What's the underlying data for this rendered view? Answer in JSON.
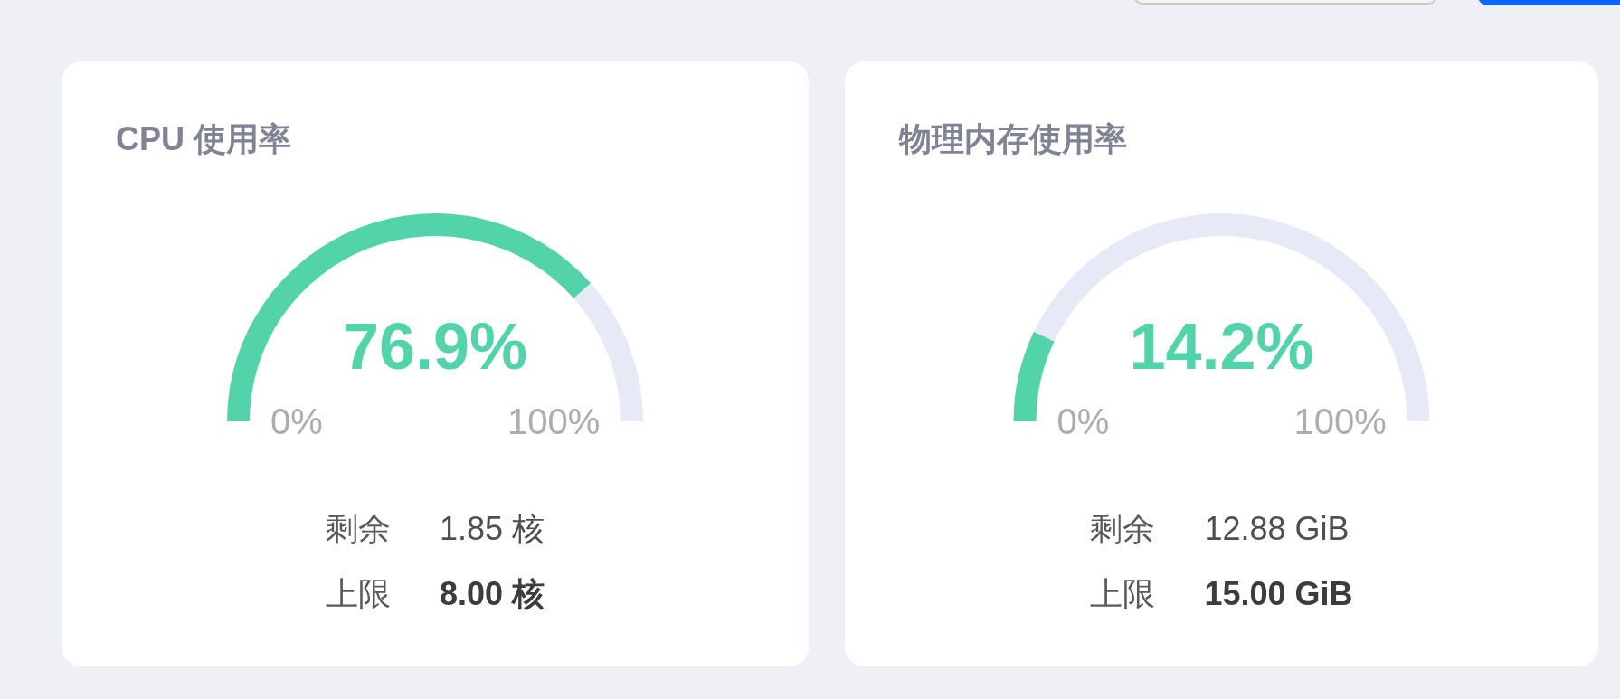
{
  "chart_data": [
    {
      "type": "donut",
      "title": "CPU 使用率",
      "categories": [
        null,
        null
      ],
      "values": [
        76.9,
        23.1
      ],
      "colors": [
        "#52d3aa",
        "#e6eaf6"
      ],
      "annotations": [
        "76.9%",
        "0%",
        "100%",
        "剩余",
        "1.85 核",
        "上限",
        "8.00 核"
      ]
    },
    {
      "type": "donut",
      "title": "物理内存使用率",
      "categories": [
        null,
        null
      ],
      "values": [
        14.2,
        85.8
      ],
      "colors": [
        "#52d3aa",
        "#e6eaf6"
      ],
      "annotations": [
        "14.2%",
        "0%",
        "100%",
        "剩余",
        "12.88 GiB",
        "上限",
        "15.00 GiB"
      ]
    }
  ]
}
